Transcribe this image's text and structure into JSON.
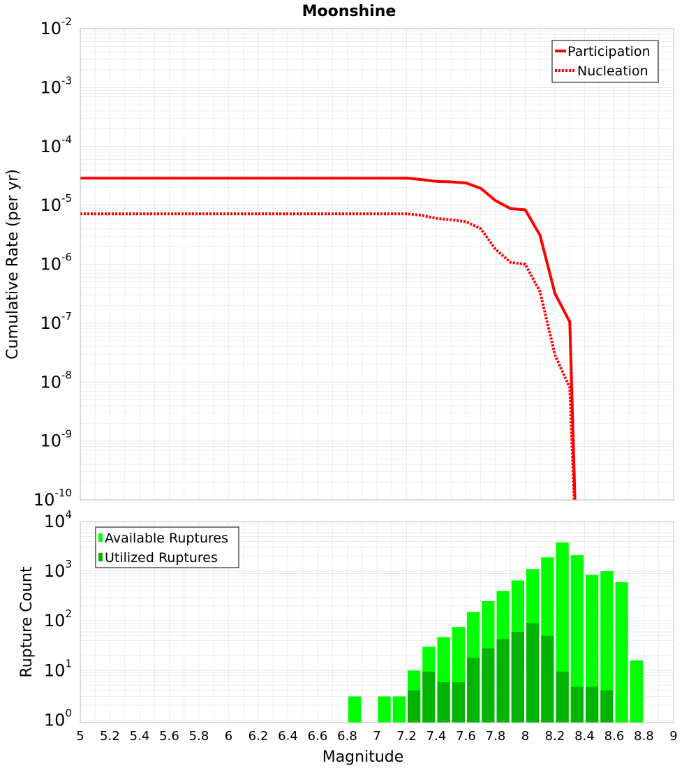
{
  "title": "Moonshine",
  "colors": {
    "rate": "#ff0000",
    "available": "#00ff00",
    "utilized": "#00b400",
    "grid": "#e8e8e8",
    "frame": "#bbbbbb"
  },
  "chart_data": [
    {
      "type": "line",
      "ylabel": "Cumulative Rate (per yr)",
      "yscale": "log",
      "xlim": [
        5,
        9
      ],
      "ylim_exponents": [
        -10,
        -2
      ],
      "ytick_exponents": [
        -10,
        -9,
        -8,
        -7,
        -6,
        -5,
        -4,
        -3,
        -2
      ],
      "legend": [
        "Participation",
        "Nucleation"
      ],
      "legend_position": "top-right",
      "series": [
        {
          "name": "Participation",
          "style": "solid",
          "points": [
            [
              5.0,
              2.9e-05
            ],
            [
              7.2,
              2.9e-05
            ],
            [
              7.3,
              2.75e-05
            ],
            [
              7.4,
              2.55e-05
            ],
            [
              7.5,
              2.5e-05
            ],
            [
              7.6,
              2.4e-05
            ],
            [
              7.7,
              1.95e-05
            ],
            [
              7.8,
              1.2e-05
            ],
            [
              7.9,
              8.8e-06
            ],
            [
              8.0,
              8.4e-06
            ],
            [
              8.1,
              3.1e-06
            ],
            [
              8.2,
              3.2e-07
            ],
            [
              8.3,
              1.05e-07
            ],
            [
              8.335,
              1e-10
            ]
          ]
        },
        {
          "name": "Nucleation",
          "style": "dotted",
          "points": [
            [
              5.0,
              7.2e-06
            ],
            [
              7.2,
              7.2e-06
            ],
            [
              7.3,
              6.8e-06
            ],
            [
              7.4,
              6e-06
            ],
            [
              7.5,
              5.7e-06
            ],
            [
              7.6,
              5.3e-06
            ],
            [
              7.7,
              4e-06
            ],
            [
              7.8,
              1.8e-06
            ],
            [
              7.9,
              1.08e-06
            ],
            [
              8.0,
              1e-06
            ],
            [
              8.1,
              3.4e-07
            ],
            [
              8.2,
              2.9e-08
            ],
            [
              8.3,
              8e-09
            ],
            [
              8.33,
              1e-10
            ]
          ]
        }
      ]
    },
    {
      "type": "bar",
      "ylabel": "Rupture Count",
      "yscale": "log",
      "ylim_exponents": [
        -0.05,
        4
      ],
      "ytick_exponents": [
        0,
        1,
        2,
        3,
        4
      ],
      "xlabel": "Magnitude",
      "xlim": [
        5,
        9
      ],
      "xticks": [
        "5",
        "5.2",
        "5.4",
        "5.6",
        "5.8",
        "6",
        "6.2",
        "6.4",
        "6.6",
        "6.8",
        "7",
        "7.2",
        "7.4",
        "7.6",
        "7.8",
        "8",
        "8.2",
        "8.4",
        "8.6",
        "8.8",
        "9"
      ],
      "bin_width": 0.1,
      "legend": [
        "Available Ruptures",
        "Utilized Ruptures"
      ],
      "legend_position": "top-left",
      "series": [
        {
          "name": "Available Ruptures",
          "bins": [
            [
              6.85,
              3
            ],
            [
              7.05,
              3
            ],
            [
              7.15,
              3
            ],
            [
              7.25,
              10
            ],
            [
              7.35,
              30
            ],
            [
              7.45,
              47
            ],
            [
              7.55,
              75
            ],
            [
              7.65,
              150
            ],
            [
              7.75,
              250
            ],
            [
              7.85,
              400
            ],
            [
              7.95,
              650
            ],
            [
              8.05,
              1100
            ],
            [
              8.15,
              1900
            ],
            [
              8.25,
              3800
            ],
            [
              8.35,
              2100
            ],
            [
              8.45,
              850
            ],
            [
              8.55,
              1000
            ],
            [
              8.65,
              600
            ],
            [
              8.75,
              16
            ]
          ]
        },
        {
          "name": "Utilized Ruptures",
          "bins": [
            [
              7.25,
              4
            ],
            [
              7.35,
              9.5
            ],
            [
              7.45,
              5.8
            ],
            [
              7.55,
              5.8
            ],
            [
              7.65,
              18
            ],
            [
              7.75,
              28
            ],
            [
              7.85,
              43
            ],
            [
              7.95,
              60
            ],
            [
              8.05,
              90
            ],
            [
              8.15,
              50
            ],
            [
              8.25,
              9.5
            ],
            [
              8.35,
              4.7
            ],
            [
              8.45,
              4.7
            ],
            [
              8.55,
              4
            ]
          ]
        }
      ]
    }
  ]
}
